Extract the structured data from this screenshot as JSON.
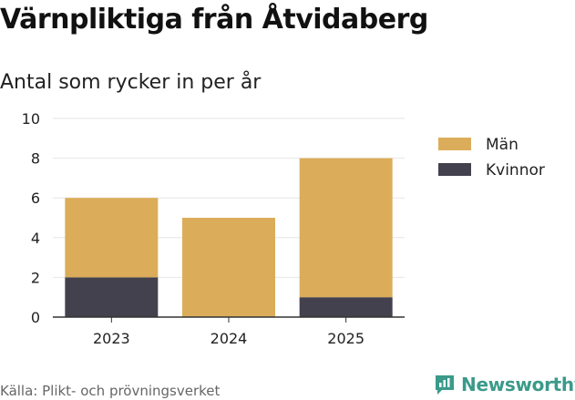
{
  "colors": {
    "men": "#dbad5a",
    "women": "#43414d",
    "grid": "#e6e6e6",
    "axis": "#333333",
    "brand": "#3b9a8a"
  },
  "header": {
    "title": "Värnpliktiga från Åtvidaberg",
    "subtitle": "Antal som rycker in per år"
  },
  "footer": {
    "source": "Källa: Plikt- och prövningsverket",
    "brand": "Newsworthy",
    "brand_icon": "newsworthy-logo-icon"
  },
  "chart_data": {
    "type": "bar",
    "stacked": true,
    "title": "Värnpliktiga från Åtvidaberg",
    "subtitle": "Antal som rycker in per år",
    "categories": [
      "2023",
      "2024",
      "2025"
    ],
    "series": [
      {
        "name": "Kvinnor",
        "values": [
          2,
          0,
          1
        ]
      },
      {
        "name": "Män",
        "values": [
          4,
          5,
          7
        ]
      }
    ],
    "ylim": [
      0,
      10
    ],
    "yticks": [
      0,
      2,
      4,
      6,
      8,
      10
    ],
    "xlabel": "",
    "ylabel": "",
    "grid": true,
    "legend": {
      "position": "right",
      "entries": [
        "Män",
        "Kvinnor"
      ]
    }
  }
}
